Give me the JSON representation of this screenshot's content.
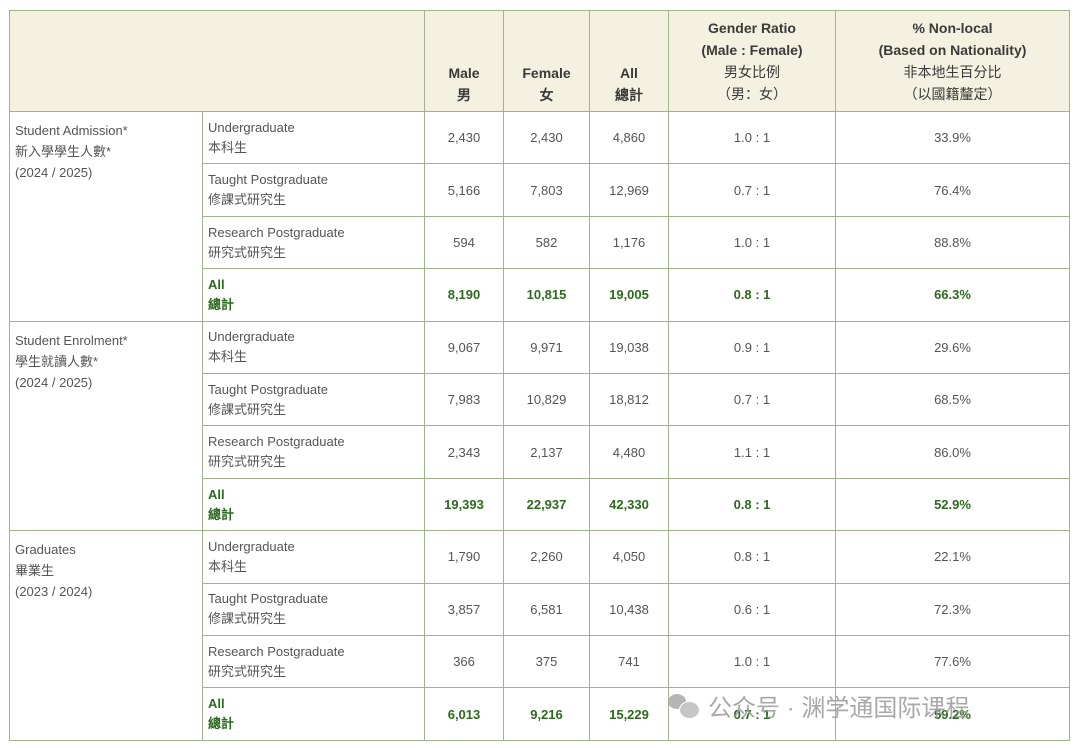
{
  "header": {
    "male": {
      "en": "Male",
      "zh": "男"
    },
    "female": {
      "en": "Female",
      "zh": "女"
    },
    "all": {
      "en": "All",
      "zh": "總計"
    },
    "ratio": {
      "en1": "Gender Ratio",
      "en2": "(Male : Female)",
      "zh1": "男女比例",
      "zh2": "（男：女）"
    },
    "nonlocal": {
      "en1": "% Non-local",
      "en2": "(Based on Nationality)",
      "zh1": "非本地生百分比",
      "zh2": "（以國籍釐定）"
    }
  },
  "sections": [
    {
      "title_en": "Student Admission*",
      "title_zh": "新入學學生人數*",
      "year": "(2024 / 2025)",
      "rows": [
        {
          "level_en": "Undergraduate",
          "level_zh": "本科生",
          "male": "2,430",
          "female": "2,430",
          "all": "4,860",
          "ratio": "1.0 : 1",
          "nonlocal": "33.9%"
        },
        {
          "level_en": "Taught Postgraduate",
          "level_zh": "修課式研究生",
          "male": "5,166",
          "female": "7,803",
          "all": "12,969",
          "ratio": "0.7 : 1",
          "nonlocal": "76.4%"
        },
        {
          "level_en": "Research Postgraduate",
          "level_zh": "研究式研究生",
          "male": "594",
          "female": "582",
          "all": "1,176",
          "ratio": "1.0 : 1",
          "nonlocal": "88.8%"
        },
        {
          "level_en": "All",
          "level_zh": "總計",
          "male": "8,190",
          "female": "10,815",
          "all": "19,005",
          "ratio": "0.8 : 1",
          "nonlocal": "66.3%"
        }
      ]
    },
    {
      "title_en": "Student Enrolment*",
      "title_zh": "學生就讀人數*",
      "year": "(2024 / 2025)",
      "rows": [
        {
          "level_en": "Undergraduate",
          "level_zh": "本科生",
          "male": "9,067",
          "female": "9,971",
          "all": "19,038",
          "ratio": "0.9 : 1",
          "nonlocal": "29.6%"
        },
        {
          "level_en": "Taught Postgraduate",
          "level_zh": "修課式研究生",
          "male": "7,983",
          "female": "10,829",
          "all": "18,812",
          "ratio": "0.7 : 1",
          "nonlocal": "68.5%"
        },
        {
          "level_en": "Research Postgraduate",
          "level_zh": "研究式研究生",
          "male": "2,343",
          "female": "2,137",
          "all": "4,480",
          "ratio": "1.1 : 1",
          "nonlocal": "86.0%"
        },
        {
          "level_en": "All",
          "level_zh": "總計",
          "male": "19,393",
          "female": "22,937",
          "all": "42,330",
          "ratio": "0.8 : 1",
          "nonlocal": "52.9%"
        }
      ]
    },
    {
      "title_en": "Graduates",
      "title_zh": "畢業生",
      "year": "(2023 / 2024)",
      "rows": [
        {
          "level_en": "Undergraduate",
          "level_zh": "本科生",
          "male": "1,790",
          "female": "2,260",
          "all": "4,050",
          "ratio": "0.8 : 1",
          "nonlocal": "22.1%"
        },
        {
          "level_en": "Taught Postgraduate",
          "level_zh": "修課式研究生",
          "male": "3,857",
          "female": "6,581",
          "all": "10,438",
          "ratio": "0.6 : 1",
          "nonlocal": "72.3%"
        },
        {
          "level_en": "Research Postgraduate",
          "level_zh": "研究式研究生",
          "male": "366",
          "female": "375",
          "all": "741",
          "ratio": "1.0 : 1",
          "nonlocal": "77.6%"
        },
        {
          "level_en": "All",
          "level_zh": "總計",
          "male": "6,013",
          "female": "9,216",
          "all": "15,229",
          "ratio": "0.7 : 1",
          "nonlocal": "59.2%"
        }
      ]
    }
  ],
  "watermark": {
    "text": "公众号 · 渊学通国际课程",
    "icon": "wechat-icon"
  },
  "colors": {
    "header_bg": "#f4f1e1",
    "border": "#9fb48a",
    "total_text": "#2d6a1f"
  }
}
